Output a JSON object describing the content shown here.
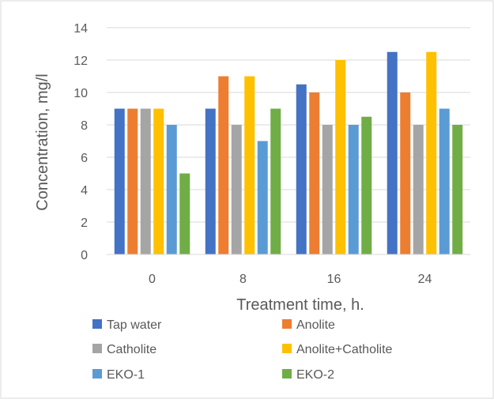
{
  "chart_data": {
    "type": "bar",
    "title": "",
    "xlabel": "Treatment time, h.",
    "ylabel": "Concentration, mg/l",
    "categories": [
      "0",
      "8",
      "16",
      "24"
    ],
    "ylim": [
      0,
      14
    ],
    "yticks": [
      0,
      2,
      4,
      6,
      8,
      10,
      12,
      14
    ],
    "grid": true,
    "legend_position": "bottom",
    "series": [
      {
        "name": "Tap water",
        "color": "#4472C4",
        "values": [
          9,
          9,
          10.5,
          12.5
        ]
      },
      {
        "name": "Anolite",
        "color": "#ED7D31",
        "values": [
          9,
          11,
          10,
          10
        ]
      },
      {
        "name": "Catholite",
        "color": "#A5A5A5",
        "values": [
          9,
          8,
          8,
          8
        ]
      },
      {
        "name": "Anolite+Catholite",
        "color": "#FFC000",
        "values": [
          9,
          11,
          12,
          12.5
        ]
      },
      {
        "name": "EKO-1",
        "color": "#5B9BD5",
        "values": [
          8,
          7,
          8,
          9
        ]
      },
      {
        "name": "EKO-2",
        "color": "#70AD47",
        "values": [
          5,
          9,
          8.5,
          8
        ]
      }
    ]
  }
}
